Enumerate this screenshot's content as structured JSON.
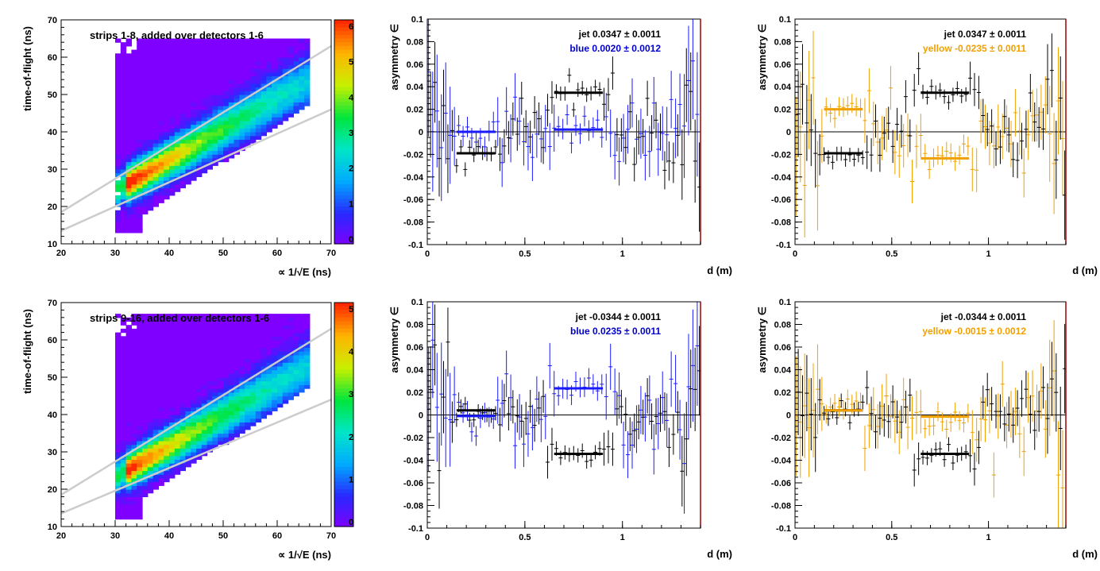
{
  "figure": {
    "heatmap_xlabel": "∝ 1/√E (ns)",
    "heatmap_ylabel": "time-of-flight (ns)",
    "asym_xlabel": "d (m)",
    "asym_ylabel": "asymmetry ∈"
  },
  "colors": {
    "jet": "#000000",
    "blue": "#1a1aff",
    "blue_label": "#0000cc",
    "yellow": "#f0a000",
    "band_line": "#cccccc",
    "frame_right": "#a00000",
    "heat_background": "#8000ff"
  },
  "chart_data": [
    {
      "id": "hm-top",
      "type": "heatmap",
      "title": "strips 1-8, added over detectors 1-6",
      "xlim": [
        20,
        70
      ],
      "ylim": [
        10,
        70
      ],
      "xticks": [
        20,
        30,
        40,
        50,
        60,
        70
      ],
      "yticks": [
        10,
        20,
        30,
        40,
        50,
        60,
        70
      ],
      "colorbar_ticks": [
        "6",
        "5",
        "4",
        "3",
        "2",
        "1",
        "0"
      ],
      "ridge": {
        "x": [
          31,
          66
        ],
        "y": [
          25,
          54
        ]
      },
      "band_lines": [
        {
          "x": [
            20,
            70
          ],
          "y": [
            18.5,
            63
          ]
        },
        {
          "x": [
            20,
            70
          ],
          "y": [
            13.5,
            46
          ]
        }
      ],
      "peak": {
        "x": 34,
        "y": 26
      },
      "data_extent": {
        "x": [
          30,
          66
        ],
        "y": [
          13,
          65
        ]
      }
    },
    {
      "id": "asym-top-blue",
      "type": "scatter",
      "xlim": [
        0,
        1.4
      ],
      "ylim": [
        -0.1,
        0.1
      ],
      "xticks": [
        "0",
        "0.5",
        "1"
      ],
      "yticks": [
        "-0.1",
        "-0.08",
        "-0.06",
        "-0.04",
        "-0.02",
        "0",
        "0.02",
        "0.04",
        "0.06",
        "0.08",
        "0.1"
      ],
      "series": [
        {
          "name": "jet",
          "color": "jet",
          "value": "0.0347",
          "err": "0.0011",
          "segments": [
            {
              "x": [
                0.15,
                0.35
              ],
              "y": -0.019
            },
            {
              "x": [
                0.65,
                0.9
              ],
              "y": 0.0347
            }
          ],
          "scatter": 0.018
        },
        {
          "name": "blue",
          "color": "blue",
          "value": "0.0020",
          "err": "0.0012",
          "segments": [
            {
              "x": [
                0.15,
                0.35
              ],
              "y": 0.0
            },
            {
              "x": [
                0.65,
                0.9
              ],
              "y": 0.002
            }
          ],
          "scatter": 0.026
        }
      ]
    },
    {
      "id": "asym-top-yellow",
      "type": "scatter",
      "xlim": [
        0,
        1.4
      ],
      "ylim": [
        -0.1,
        0.1
      ],
      "xticks": [
        "0",
        "0.5",
        "1"
      ],
      "yticks": [
        "-0.1",
        "-0.08",
        "-0.06",
        "-0.04",
        "-0.02",
        "0",
        "0.02",
        "0.04",
        "0.06",
        "0.08",
        "0.1"
      ],
      "series": [
        {
          "name": "jet",
          "color": "jet",
          "value": "0.0347",
          "err": "0.0011",
          "segments": [
            {
              "x": [
                0.15,
                0.35
              ],
              "y": -0.019
            },
            {
              "x": [
                0.65,
                0.9
              ],
              "y": 0.0347
            }
          ],
          "scatter": 0.018
        },
        {
          "name": "yellow",
          "color": "yellow",
          "value": "-0.0235",
          "err": "0.0011",
          "segments": [
            {
              "x": [
                0.15,
                0.35
              ],
              "y": 0.02
            },
            {
              "x": [
                0.65,
                0.9
              ],
              "y": -0.0235
            }
          ],
          "scatter": 0.024
        }
      ]
    },
    {
      "id": "hm-bottom",
      "type": "heatmap",
      "title": "strips 9-16, added over detectors 1-6",
      "xlim": [
        20,
        70
      ],
      "ylim": [
        10,
        70
      ],
      "xticks": [
        20,
        30,
        40,
        50,
        60,
        70
      ],
      "yticks": [
        10,
        20,
        30,
        40,
        50,
        60,
        70
      ],
      "colorbar_ticks": [
        "5",
        "4",
        "3",
        "2",
        "1",
        "0"
      ],
      "ridge": {
        "x": [
          31,
          66
        ],
        "y": [
          24,
          53
        ]
      },
      "band_lines": [
        {
          "x": [
            20,
            70
          ],
          "y": [
            18.5,
            63
          ]
        },
        {
          "x": [
            20,
            70
          ],
          "y": [
            13.5,
            44
          ]
        }
      ],
      "peak": {
        "x": 33,
        "y": 25
      },
      "data_extent": {
        "x": [
          30,
          66
        ],
        "y": [
          12,
          67
        ]
      }
    },
    {
      "id": "asym-bottom-blue",
      "type": "scatter",
      "xlim": [
        0,
        1.4
      ],
      "ylim": [
        -0.1,
        0.1
      ],
      "xticks": [
        "0",
        "0.5",
        "1"
      ],
      "yticks": [
        "-0.1",
        "-0.08",
        "-0.06",
        "-0.04",
        "-0.02",
        "0",
        "0.02",
        "0.04",
        "0.06",
        "0.08",
        "0.1"
      ],
      "series": [
        {
          "name": "jet",
          "color": "jet",
          "value": "-0.0344",
          "err": "0.0011",
          "segments": [
            {
              "x": [
                0.15,
                0.35
              ],
              "y": 0.004
            },
            {
              "x": [
                0.65,
                0.9
              ],
              "y": -0.0344
            }
          ],
          "scatter": 0.018
        },
        {
          "name": "blue",
          "color": "blue",
          "value": "0.0235",
          "err": "0.0011",
          "segments": [
            {
              "x": [
                0.15,
                0.35
              ],
              "y": -0.001
            },
            {
              "x": [
                0.65,
                0.9
              ],
              "y": 0.0235
            }
          ],
          "scatter": 0.025
        }
      ]
    },
    {
      "id": "asym-bottom-yellow",
      "type": "scatter",
      "xlim": [
        0,
        1.4
      ],
      "ylim": [
        -0.1,
        0.1
      ],
      "xticks": [
        "0",
        "0.5",
        "1"
      ],
      "yticks": [
        "-0.1",
        "-0.08",
        "-0.06",
        "-0.04",
        "-0.02",
        "0",
        "0.02",
        "0.04",
        "0.06",
        "0.08",
        "0.1"
      ],
      "series": [
        {
          "name": "jet",
          "color": "jet",
          "value": "-0.0344",
          "err": "0.0011",
          "segments": [
            {
              "x": [
                0.15,
                0.35
              ],
              "y": 0.004
            },
            {
              "x": [
                0.65,
                0.9
              ],
              "y": -0.0344
            }
          ],
          "scatter": 0.018
        },
        {
          "name": "yellow",
          "color": "yellow",
          "value": "-0.0015",
          "err": "0.0012",
          "segments": [
            {
              "x": [
                0.15,
                0.35
              ],
              "y": 0.004
            },
            {
              "x": [
                0.65,
                0.9
              ],
              "y": -0.0015
            }
          ],
          "scatter": 0.024
        }
      ]
    }
  ]
}
